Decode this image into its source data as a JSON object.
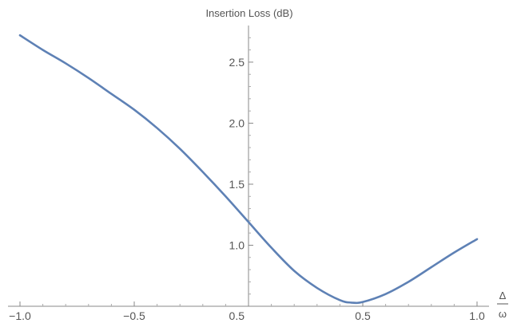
{
  "colors": {
    "series": "#5E81B5",
    "axis": "#888888",
    "text": "#555555",
    "background": "#ffffff"
  },
  "chart_data": {
    "type": "line",
    "title": "",
    "ylabel": "Insertion Loss (dB)",
    "xlabel_numerator": "Δ",
    "xlabel_denominator": "ω",
    "xlim": [
      -1.0,
      1.0
    ],
    "ylim": [
      0.5,
      2.8
    ],
    "x_origin": 0,
    "y_origin": 0.5,
    "grid": false,
    "legend": "none",
    "x_ticks": [
      {
        "value": -1.0,
        "label": "−1.0"
      },
      {
        "value": -0.5,
        "label": "−0.5"
      },
      {
        "value": 0.5,
        "label": "0.5"
      },
      {
        "value": 1.0,
        "label": "1.0"
      }
    ],
    "y_ticks": [
      {
        "value": 0.5,
        "label": "0.5"
      },
      {
        "value": 1.0,
        "label": "1.0"
      },
      {
        "value": 1.5,
        "label": "1.5"
      },
      {
        "value": 2.0,
        "label": "2.0"
      },
      {
        "value": 2.5,
        "label": "2.5"
      }
    ],
    "series": [
      {
        "x": [
          -1.0,
          -0.9,
          -0.8,
          -0.7,
          -0.6,
          -0.5,
          -0.4,
          -0.3,
          -0.2,
          -0.1,
          0.0,
          0.1,
          0.2,
          0.3,
          0.4,
          0.45,
          0.5,
          0.6,
          0.7,
          0.8,
          0.9,
          1.0
        ],
        "y": [
          2.72,
          2.6,
          2.49,
          2.37,
          2.24,
          2.11,
          1.96,
          1.79,
          1.6,
          1.4,
          1.19,
          0.98,
          0.79,
          0.65,
          0.55,
          0.53,
          0.535,
          0.6,
          0.7,
          0.82,
          0.94,
          1.05
        ]
      }
    ]
  }
}
